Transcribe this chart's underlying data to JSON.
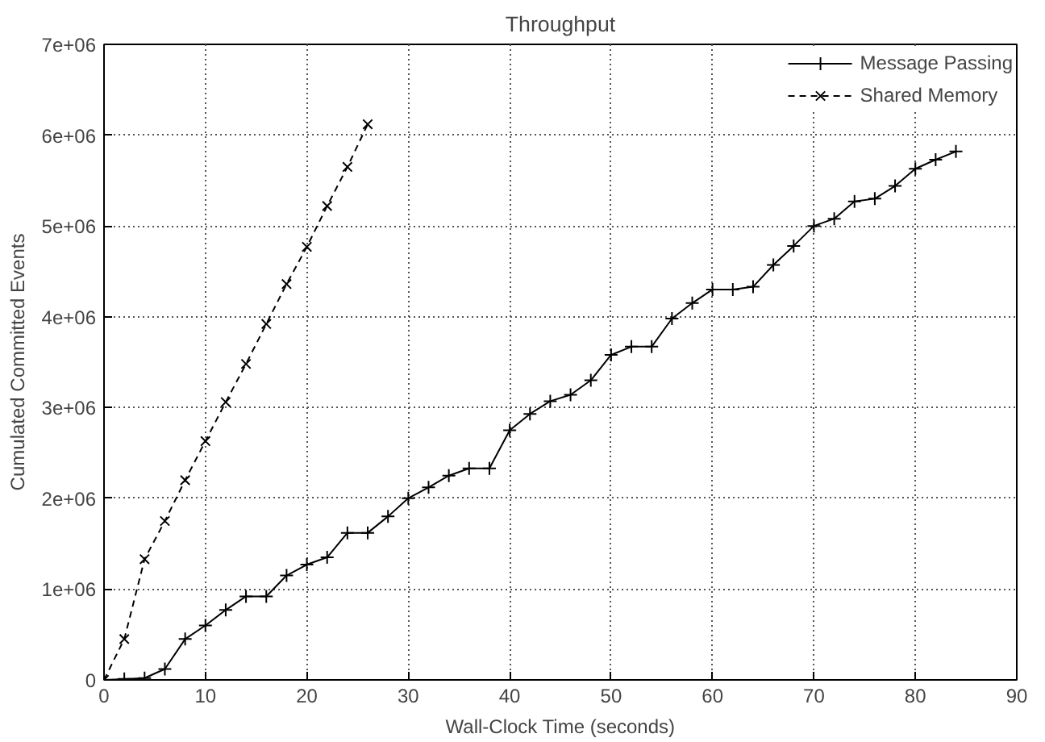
{
  "chart_data": {
    "type": "line",
    "title": "Throughput",
    "xlabel": "Wall-Clock Time (seconds)",
    "ylabel": "Cumulated Committed Events",
    "xlim": [
      0,
      90
    ],
    "xticks": [
      0,
      10,
      20,
      30,
      40,
      50,
      60,
      70,
      80,
      90
    ],
    "ylim": [
      0,
      7000000
    ],
    "yticks": [
      {
        "value": 0,
        "label": "0"
      },
      {
        "value": 1000000,
        "label": "1e+06"
      },
      {
        "value": 2000000,
        "label": "2e+06"
      },
      {
        "value": 3000000,
        "label": "3e+06"
      },
      {
        "value": 4000000,
        "label": "4e+06"
      },
      {
        "value": 5000000,
        "label": "5e+06"
      },
      {
        "value": 6000000,
        "label": "6e+06"
      },
      {
        "value": 7000000,
        "label": "7e+06"
      }
    ],
    "grid": true,
    "legend": "top right",
    "series": [
      {
        "name": "Message Passing",
        "color": "#000000",
        "marker": "cross",
        "line_style": "solid",
        "x": [
          0,
          2,
          4,
          6,
          8,
          10,
          12,
          14,
          16,
          18,
          20,
          22,
          24,
          26,
          28,
          30,
          32,
          34,
          36,
          38,
          40,
          42,
          44,
          46,
          48,
          50,
          52,
          54,
          56,
          58,
          60,
          62,
          64,
          66,
          68,
          70,
          72,
          74,
          76,
          78,
          80,
          82,
          84
        ],
        "values": [
          0,
          10000,
          20000,
          120000,
          450000,
          600000,
          770000,
          920000,
          920000,
          1150000,
          1270000,
          1350000,
          1620000,
          1620000,
          1800000,
          2000000,
          2120000,
          2250000,
          2330000,
          2330000,
          2750000,
          2930000,
          3070000,
          3140000,
          3300000,
          3580000,
          3670000,
          3670000,
          3980000,
          4150000,
          4300000,
          4300000,
          4330000,
          4570000,
          4780000,
          5000000,
          5080000,
          5270000,
          5300000,
          5440000,
          5630000,
          5730000,
          5820000
        ]
      },
      {
        "name": "Shared Memory",
        "color": "#000000",
        "marker": "x",
        "line_style": "dashed",
        "x": [
          0,
          2,
          4,
          6,
          8,
          10,
          12,
          14,
          16,
          18,
          20,
          22,
          24,
          26
        ],
        "values": [
          0,
          450000,
          1330000,
          1750000,
          2200000,
          2630000,
          3060000,
          3480000,
          3920000,
          4360000,
          4770000,
          5220000,
          5650000,
          6120000
        ]
      }
    ]
  }
}
